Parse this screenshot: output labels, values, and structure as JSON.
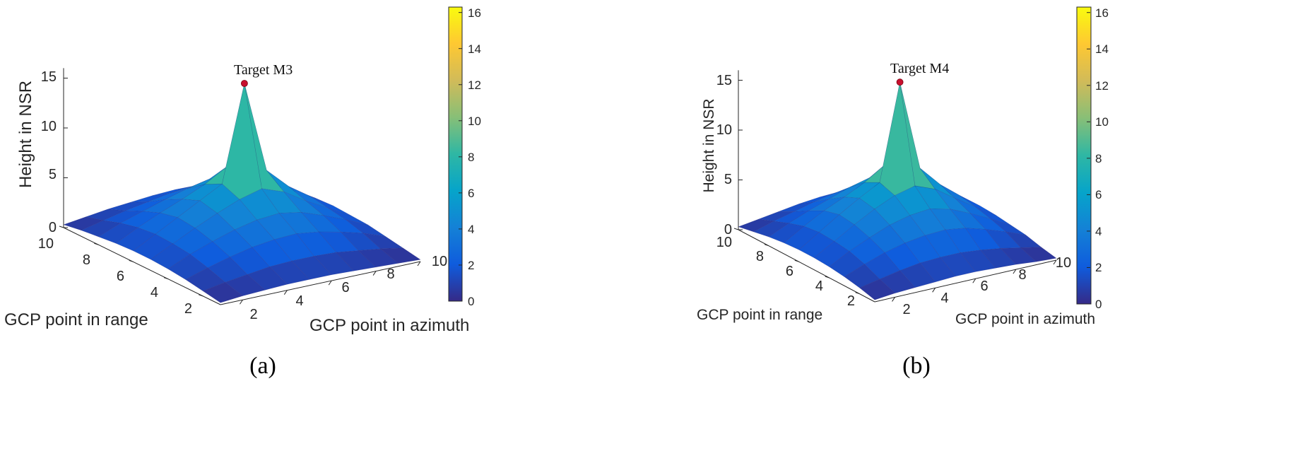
{
  "colors": {
    "parula": [
      "#352a87",
      "#0f5cdd",
      "#1481d6",
      "#06a4ca",
      "#2eb7a4",
      "#87bf77",
      "#d1bb59",
      "#fec832",
      "#f9fb0e"
    ],
    "marker": "#c8102e",
    "axis": "#262626"
  },
  "chart_data": [
    {
      "type": "surface",
      "panel_label": "(a)",
      "target_label": "Target M3",
      "xlabel": "GCP point in azimuth",
      "ylabel": "GCP point in range",
      "zlabel": "Height in NSR",
      "x_ticks": [
        2,
        4,
        6,
        8,
        10
      ],
      "y_ticks": [
        2,
        4,
        6,
        8,
        10
      ],
      "z_ticks": [
        0,
        5,
        10,
        15
      ],
      "xlim": [
        1,
        10
      ],
      "ylim": [
        1,
        10
      ],
      "zlim": [
        0,
        16
      ],
      "colorbar_ticks": [
        0,
        2,
        4,
        6,
        8,
        10,
        12,
        14,
        16
      ],
      "clim": [
        0,
        16.3
      ],
      "peak": {
        "x": 6,
        "y": 6,
        "z": 15.5
      },
      "z": [
        [
          0.2,
          0.4,
          0.5,
          0.6,
          0.6,
          0.6,
          0.5,
          0.4,
          0.3,
          0.2
        ],
        [
          0.5,
          0.9,
          1.2,
          1.5,
          1.6,
          1.6,
          1.5,
          1.2,
          0.9,
          0.5
        ],
        [
          0.8,
          1.5,
          2.1,
          2.6,
          2.9,
          3.0,
          2.7,
          2.2,
          1.6,
          0.8
        ],
        [
          1.0,
          2.0,
          2.8,
          3.5,
          4.0,
          4.2,
          3.8,
          3.0,
          2.1,
          1.1
        ],
        [
          1.1,
          2.2,
          3.3,
          4.3,
          5.2,
          5.8,
          5.0,
          3.6,
          2.4,
          1.2
        ],
        [
          1.1,
          2.3,
          3.5,
          4.7,
          5.9,
          15.5,
          6.3,
          4.2,
          2.7,
          1.3
        ],
        [
          1.0,
          2.1,
          3.1,
          4.0,
          5.0,
          6.3,
          5.5,
          3.9,
          2.5,
          1.2
        ],
        [
          0.8,
          1.7,
          2.4,
          3.1,
          3.7,
          4.2,
          3.8,
          2.9,
          2.0,
          0.9
        ],
        [
          0.6,
          1.1,
          1.6,
          2.0,
          2.4,
          2.6,
          2.4,
          1.9,
          1.3,
          0.6
        ],
        [
          0.3,
          0.6,
          0.9,
          1.1,
          1.3,
          1.4,
          1.3,
          1.0,
          0.7,
          0.3
        ]
      ]
    },
    {
      "type": "surface",
      "panel_label": "(b)",
      "target_label": "Target M4",
      "xlabel": "GCP point in azimuth",
      "ylabel": "GCP point in range",
      "zlabel": "Height in NSR",
      "x_ticks": [
        2,
        4,
        6,
        8,
        10
      ],
      "y_ticks": [
        2,
        4,
        6,
        8,
        10
      ],
      "z_ticks": [
        0,
        5,
        10,
        15
      ],
      "xlim": [
        1,
        10
      ],
      "ylim": [
        1,
        10
      ],
      "zlim": [
        0,
        16
      ],
      "colorbar_ticks": [
        0,
        2,
        4,
        6,
        8,
        10,
        12,
        14,
        16
      ],
      "clim": [
        0,
        16.3
      ],
      "peak": {
        "x": 6,
        "y": 6,
        "z": 15.7
      },
      "z": [
        [
          0.2,
          0.4,
          0.5,
          0.6,
          0.7,
          0.7,
          0.6,
          0.5,
          0.3,
          0.2
        ],
        [
          0.6,
          1.0,
          1.4,
          1.7,
          1.8,
          1.8,
          1.6,
          1.3,
          0.9,
          0.5
        ],
        [
          0.9,
          1.7,
          2.4,
          2.9,
          3.2,
          3.3,
          3.0,
          2.4,
          1.7,
          0.9
        ],
        [
          1.1,
          2.2,
          3.1,
          3.9,
          4.4,
          4.6,
          4.1,
          3.2,
          2.2,
          1.1
        ],
        [
          1.2,
          2.4,
          3.6,
          4.7,
          5.6,
          6.1,
          5.3,
          3.9,
          2.6,
          1.3
        ],
        [
          1.2,
          2.5,
          3.8,
          5.0,
          6.1,
          15.7,
          6.6,
          4.5,
          2.9,
          1.4
        ],
        [
          1.1,
          2.3,
          3.4,
          4.3,
          5.3,
          6.6,
          5.8,
          4.1,
          2.7,
          1.3
        ],
        [
          0.9,
          1.8,
          2.6,
          3.3,
          4.0,
          4.5,
          4.0,
          3.1,
          2.1,
          1.0
        ],
        [
          0.6,
          1.2,
          1.7,
          2.2,
          2.6,
          2.8,
          2.6,
          2.0,
          1.4,
          0.7
        ],
        [
          0.3,
          0.6,
          0.9,
          1.2,
          1.4,
          1.5,
          1.4,
          1.1,
          0.7,
          0.4
        ]
      ]
    }
  ]
}
